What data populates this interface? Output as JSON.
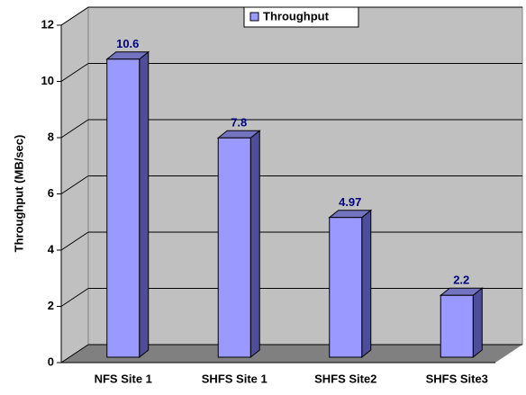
{
  "chart_data": {
    "type": "bar",
    "categories": [
      "NFS Site 1",
      "SHFS Site 1",
      "SHFS Site2",
      "SHFS Site3"
    ],
    "series": [
      {
        "name": "Throughput",
        "color": "#9999ff",
        "values": [
          10.6,
          7.8,
          4.97,
          2.2
        ]
      }
    ],
    "ylabel": "Throughput (MB/sec)",
    "ylim": [
      0,
      12
    ],
    "yticks": [
      0,
      2,
      4,
      6,
      8,
      10,
      12
    ],
    "grid": true,
    "legend": "top"
  }
}
